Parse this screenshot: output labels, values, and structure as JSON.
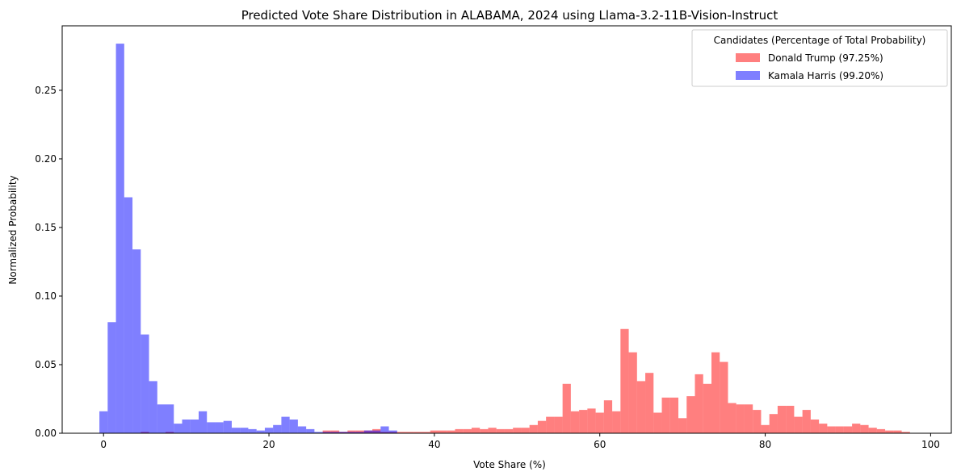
{
  "chart_data": {
    "type": "bar",
    "title": "Predicted Vote Share Distribution in ALABAMA, 2024 using Llama-3.2-11B-Vision-Instruct",
    "xlabel": "Vote Share (%)",
    "ylabel": "Normalized Probability",
    "xlim": [
      -5,
      102.5
    ],
    "ylim": [
      0,
      0.297
    ],
    "xticks": [
      0,
      20,
      40,
      60,
      80,
      100
    ],
    "yticks": [
      0.0,
      0.05,
      0.1,
      0.15,
      0.2,
      0.25
    ],
    "ytick_labels": [
      "0.00",
      "0.05",
      "0.10",
      "0.15",
      "0.20",
      "0.25"
    ],
    "bin_start": -0.5,
    "bin_width": 1,
    "legend": {
      "title": "Candidates (Percentage of Total Probability)",
      "position": "top-right"
    },
    "series": [
      {
        "name": "Donald Trump (97.25%)",
        "color": "#ff0000",
        "opacity": 0.5,
        "values": [
          0,
          0,
          0,
          0,
          0,
          0.001,
          0,
          0,
          0.001,
          0,
          0,
          0,
          0,
          0,
          0,
          0,
          0,
          0,
          0,
          0,
          0,
          0,
          0,
          0,
          0,
          0,
          0,
          0.002,
          0.002,
          0.001,
          0.002,
          0.002,
          0.002,
          0.003,
          0.001,
          0.001,
          0.001,
          0.001,
          0.001,
          0.001,
          0.002,
          0.002,
          0.002,
          0.003,
          0.003,
          0.004,
          0.003,
          0.004,
          0.003,
          0.003,
          0.004,
          0.004,
          0.006,
          0.009,
          0.012,
          0.012,
          0.036,
          0.016,
          0.017,
          0.018,
          0.015,
          0.024,
          0.016,
          0.076,
          0.059,
          0.038,
          0.044,
          0.015,
          0.026,
          0.026,
          0.011,
          0.027,
          0.043,
          0.036,
          0.059,
          0.052,
          0.022,
          0.021,
          0.021,
          0.017,
          0.006,
          0.014,
          0.02,
          0.02,
          0.012,
          0.017,
          0.01,
          0.007,
          0.005,
          0.005,
          0.005,
          0.007,
          0.006,
          0.004,
          0.003,
          0.002,
          0.002,
          0.001,
          0,
          0,
          0
        ]
      },
      {
        "name": "Kamala Harris (99.20%)",
        "color": "#0000ff",
        "opacity": 0.5,
        "values": [
          0.016,
          0.081,
          0.284,
          0.172,
          0.134,
          0.072,
          0.038,
          0.021,
          0.021,
          0.007,
          0.01,
          0.01,
          0.016,
          0.008,
          0.008,
          0.009,
          0.004,
          0.004,
          0.003,
          0.002,
          0.004,
          0.006,
          0.012,
          0.01,
          0.005,
          0.003,
          0.001,
          0.001,
          0.001,
          0.001,
          0.001,
          0.001,
          0.002,
          0.002,
          0.005,
          0.002,
          0,
          0,
          0,
          0,
          0,
          0,
          0,
          0,
          0,
          0,
          0,
          0,
          0,
          0,
          0,
          0,
          0,
          0,
          0,
          0,
          0,
          0,
          0,
          0,
          0,
          0,
          0,
          0,
          0,
          0,
          0,
          0,
          0,
          0,
          0,
          0,
          0,
          0,
          0,
          0,
          0,
          0,
          0,
          0,
          0,
          0,
          0,
          0,
          0,
          0,
          0,
          0,
          0,
          0,
          0,
          0,
          0,
          0,
          0,
          0,
          0,
          0,
          0,
          0,
          0
        ]
      }
    ]
  }
}
